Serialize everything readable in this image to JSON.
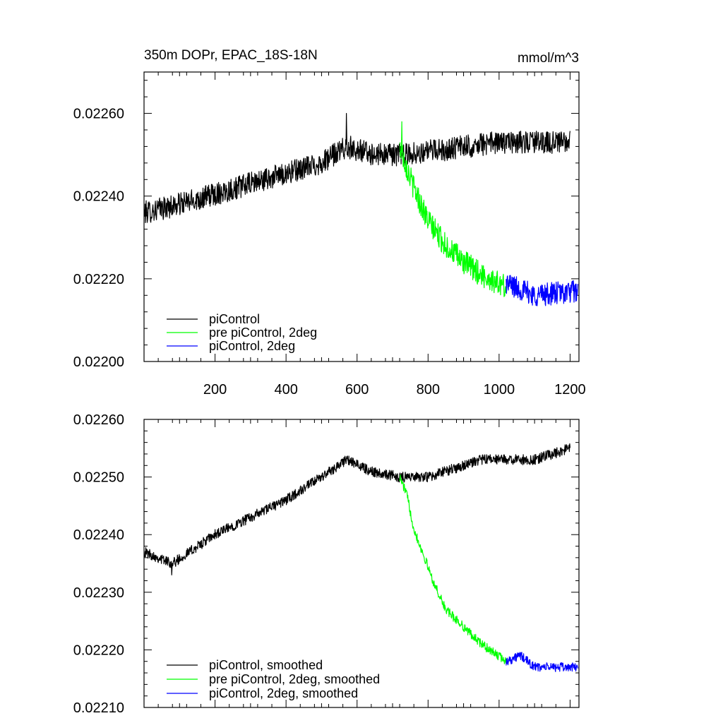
{
  "chart_data": [
    {
      "type": "line",
      "title": "350m DOPr, EPAC_18S-18N",
      "units": "mmol/m^3",
      "xlim": [
        0,
        1225
      ],
      "ylim": [
        0.022,
        0.0227
      ],
      "xticks": [
        200,
        400,
        600,
        800,
        1000,
        1200
      ],
      "xtick_labels": [
        "200",
        "400",
        "600",
        "800",
        "1000",
        "1200"
      ],
      "yticks": [
        0.022,
        0.0222,
        0.0224,
        0.0226
      ],
      "ytick_labels": [
        "0.02200",
        "0.02220",
        "0.02240",
        "0.02260"
      ],
      "legend_position": "bottom-left",
      "series": [
        {
          "name": "piControl",
          "color": "#000000",
          "x_start": 1,
          "x_end": 1200,
          "trend": [
            [
              1,
              0.02236
            ],
            [
              100,
              0.02238
            ],
            [
              300,
              0.02243
            ],
            [
              500,
              0.02248
            ],
            [
              570,
              0.02252
            ],
            [
              650,
              0.0225
            ],
            [
              730,
              0.0225
            ],
            [
              1000,
              0.02253
            ],
            [
              1200,
              0.02253
            ]
          ],
          "noise": 2.8e-05,
          "spike": {
            "x": 570,
            "y": 0.0226
          }
        },
        {
          "name": "pre piControl, 2deg",
          "color": "#00ff00",
          "x_start": 720,
          "x_end": 1020,
          "trend": [
            [
              720,
              0.02252
            ],
            [
              760,
              0.02242
            ],
            [
              800,
              0.02234
            ],
            [
              850,
              0.02228
            ],
            [
              900,
              0.02224
            ],
            [
              950,
              0.02221
            ],
            [
              1020,
              0.02218
            ]
          ],
          "noise": 3e-05,
          "spike": {
            "x": 726,
            "y": 0.02258
          }
        },
        {
          "name": "piControl, 2deg",
          "color": "#0000ff",
          "x_start": 1020,
          "x_end": 1222,
          "trend": [
            [
              1020,
              0.02219
            ],
            [
              1100,
              0.02216
            ],
            [
              1222,
              0.02217
            ]
          ],
          "noise": 2.8e-05
        }
      ]
    },
    {
      "type": "line",
      "xlim": [
        0,
        1225
      ],
      "ylim": [
        0.0221,
        0.0226
      ],
      "xticks": [
        200,
        400,
        600,
        800,
        1000,
        1200
      ],
      "xtick_labels": [],
      "yticks": [
        0.0221,
        0.0222,
        0.0223,
        0.0224,
        0.0225,
        0.0226
      ],
      "ytick_labels": [
        "0.02210",
        "0.02220",
        "0.02230",
        "0.02240",
        "0.02250",
        "0.02260"
      ],
      "legend_position": "bottom-left",
      "series": [
        {
          "name": "piControl, smoothed",
          "color": "#000000",
          "x_start": 1,
          "x_end": 1200,
          "trend": [
            [
              1,
              0.02237
            ],
            [
              80,
              0.02235
            ],
            [
              200,
              0.0224
            ],
            [
              400,
              0.02246
            ],
            [
              500,
              0.0225
            ],
            [
              570,
              0.02253
            ],
            [
              640,
              0.02251
            ],
            [
              720,
              0.0225
            ],
            [
              800,
              0.0225
            ],
            [
              950,
              0.02253
            ],
            [
              1100,
              0.02253
            ],
            [
              1200,
              0.02255
            ]
          ],
          "noise": 9e-06,
          "spike": {
            "x": 78,
            "y": 0.02233
          }
        },
        {
          "name": "pre piControl, 2deg, smoothed",
          "color": "#00ff00",
          "x_start": 720,
          "x_end": 1020,
          "trend": [
            [
              720,
              0.0225
            ],
            [
              740,
              0.02247
            ],
            [
              760,
              0.02241
            ],
            [
              790,
              0.02236
            ],
            [
              820,
              0.02231
            ],
            [
              850,
              0.02227
            ],
            [
              900,
              0.02224
            ],
            [
              950,
              0.02221
            ],
            [
              1020,
              0.02218
            ]
          ],
          "noise": 8e-06
        },
        {
          "name": "piControl, 2deg, smoothed",
          "color": "#0000ff",
          "x_start": 1020,
          "x_end": 1222,
          "trend": [
            [
              1020,
              0.02218
            ],
            [
              1060,
              0.02219
            ],
            [
              1100,
              0.02217
            ],
            [
              1150,
              0.02217
            ],
            [
              1222,
              0.02217
            ]
          ],
          "noise": 8e-06
        }
      ]
    }
  ]
}
